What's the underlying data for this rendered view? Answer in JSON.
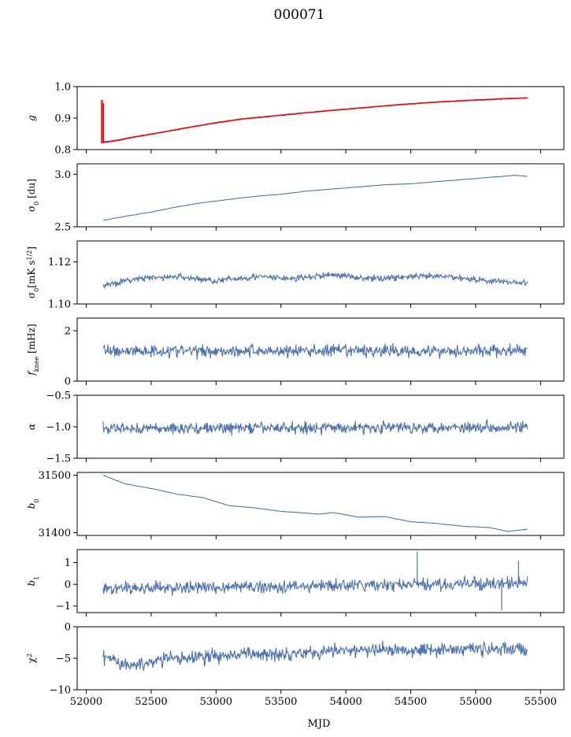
{
  "figure_title": "000071",
  "chart_data": [
    {
      "type": "line",
      "ylabel": "g",
      "ylim": [
        0.8,
        1.0
      ],
      "y_ticks": [
        "0.8",
        "0.9",
        "1.0"
      ],
      "x": [
        52130,
        52200,
        52400,
        52600,
        52800,
        53000,
        53200,
        53400,
        53600,
        53800,
        54000,
        54200,
        54400,
        54600,
        54800,
        55000,
        55200,
        55400
      ],
      "series": [
        {
          "color": "#4c72b0",
          "values": [
            0.825,
            0.828,
            0.843,
            0.857,
            0.872,
            0.886,
            0.898,
            0.906,
            0.914,
            0.922,
            0.929,
            0.936,
            0.943,
            0.949,
            0.954,
            0.958,
            0.962,
            0.965
          ]
        },
        {
          "color": "#ff0000",
          "values": [
            0.823,
            0.826,
            0.842,
            0.856,
            0.871,
            0.885,
            0.897,
            0.905,
            0.913,
            0.921,
            0.928,
            0.935,
            0.942,
            0.948,
            0.953,
            0.957,
            0.961,
            0.964
          ],
          "spike": {
            "x": 52120,
            "y_range": [
              0.82,
              0.958
            ]
          }
        }
      ]
    },
    {
      "type": "line",
      "ylabel": "σ0 [du]",
      "ylim": [
        2.5,
        3.1
      ],
      "y_ticks": [
        "2.5",
        "3.0"
      ],
      "x": [
        52130,
        52300,
        52500,
        52700,
        52900,
        53100,
        53300,
        53500,
        53700,
        53900,
        54100,
        54300,
        54500,
        54700,
        54900,
        55100,
        55300,
        55400
      ],
      "series": [
        {
          "color": "#4c72b0",
          "values": [
            2.56,
            2.6,
            2.64,
            2.69,
            2.73,
            2.76,
            2.79,
            2.81,
            2.84,
            2.86,
            2.88,
            2.9,
            2.91,
            2.93,
            2.95,
            2.97,
            2.99,
            2.98
          ]
        }
      ]
    },
    {
      "type": "line",
      "ylabel": "σ0[mK s1/2]",
      "ylim": [
        1.1,
        1.13
      ],
      "y_ticks": [
        "1.10",
        "1.12"
      ],
      "x": [
        52130,
        52400,
        52700,
        53000,
        53300,
        53600,
        53900,
        54200,
        54500,
        54800,
        55100,
        55400
      ],
      "series": [
        {
          "color": "#4c72b0",
          "values": [
            1.109,
            1.112,
            1.113,
            1.111,
            1.113,
            1.112,
            1.114,
            1.112,
            1.113,
            1.113,
            1.111,
            1.11
          ],
          "noise": 0.0015
        }
      ]
    },
    {
      "type": "line",
      "ylabel": "fknee [mHz]",
      "ylim": [
        0,
        2.5
      ],
      "y_ticks": [
        "0",
        "2"
      ],
      "x": [
        52130,
        55400
      ],
      "series": [
        {
          "color": "#4c72b0",
          "values": [
            1.2,
            1.2
          ],
          "noise": 0.25
        }
      ]
    },
    {
      "type": "line",
      "ylabel": "α",
      "ylim": [
        -1.5,
        -0.5
      ],
      "y_ticks": [
        "−1.5",
        "−1.0",
        "−0.5"
      ],
      "x": [
        52130,
        55400
      ],
      "series": [
        {
          "color": "#4c72b0",
          "values": [
            -1.03,
            -1.0
          ],
          "noise": 0.09
        }
      ]
    },
    {
      "type": "line",
      "ylabel": "b0",
      "ylim": [
        31395,
        31505
      ],
      "y_ticks": [
        "31400",
        "31500"
      ],
      "x": [
        52130,
        52300,
        52500,
        52700,
        52900,
        53100,
        53300,
        53500,
        53700,
        53800,
        53900,
        54100,
        54300,
        54500,
        54700,
        54900,
        55100,
        55250,
        55400
      ],
      "series": [
        {
          "color": "#4c72b0",
          "values": [
            31500,
            31485,
            31477,
            31467,
            31461,
            31447,
            31443,
            31437,
            31434,
            31432,
            31435,
            31427,
            31428,
            31419,
            31416,
            31411,
            31409,
            31402,
            31406
          ]
        }
      ]
    },
    {
      "type": "line",
      "ylabel": "b1",
      "ylim": [
        -1.3,
        1.6
      ],
      "y_ticks": [
        "−1",
        "0",
        "1"
      ],
      "x": [
        52130,
        55400
      ],
      "series": [
        {
          "color": "#4c72b0",
          "values": [
            -0.2,
            0.05
          ],
          "noise": 0.28,
          "spikes": [
            {
              "x": 54550,
              "y": 1.5
            },
            {
              "x": 55330,
              "y": 1.1
            },
            {
              "x": 55200,
              "y": -1.2
            }
          ]
        }
      ]
    },
    {
      "type": "line",
      "ylabel": "χ2",
      "xlabel": "MJD",
      "ylim": [
        -10,
        0
      ],
      "y_ticks": [
        "−10",
        "−5",
        "0"
      ],
      "x_ticks": [
        "52000",
        "52500",
        "53000",
        "53500",
        "54000",
        "54500",
        "55000",
        "55500"
      ],
      "x": [
        52130,
        52300,
        52600,
        53000,
        53500,
        54000,
        54500,
        55000,
        55400
      ],
      "series": [
        {
          "color": "#4c72b0",
          "values": [
            -4.5,
            -6.3,
            -5.2,
            -4.6,
            -4.2,
            -3.8,
            -3.6,
            -3.5,
            -3.6
          ],
          "noise": 1.1
        }
      ]
    }
  ],
  "x_axis": {
    "label": "MJD",
    "xlim": [
      51930,
      55680
    ],
    "ticks": [
      52000,
      52500,
      53000,
      53500,
      54000,
      54500,
      55000,
      55500
    ]
  }
}
